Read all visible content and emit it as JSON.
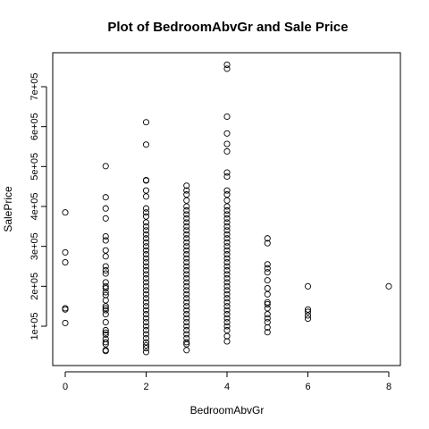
{
  "chart_data": {
    "type": "scatter",
    "title": "Plot of BedroomAbvGr and Sale Price",
    "xlabel": "BedroomAbvGr",
    "ylabel": "SalePrice",
    "xlim": [
      0,
      8
    ],
    "ylim": [
      34900,
      755000
    ],
    "x_ticks": [
      0,
      2,
      4,
      6,
      8
    ],
    "x_tick_labels": [
      "0",
      "2",
      "4",
      "6",
      "8"
    ],
    "y_ticks": [
      100000,
      200000,
      300000,
      400000,
      500000,
      600000,
      700000
    ],
    "y_tick_labels": [
      "1e+05",
      "2e+05",
      "3e+05",
      "4e+05",
      "5e+05",
      "6e+05",
      "7e+05"
    ],
    "grid": false,
    "legend": "none",
    "points": [
      {
        "x": 0,
        "y": 385000
      },
      {
        "x": 0,
        "y": 285000
      },
      {
        "x": 0,
        "y": 260000
      },
      {
        "x": 0,
        "y": 145000
      },
      {
        "x": 0,
        "y": 142000
      },
      {
        "x": 0,
        "y": 108000
      },
      {
        "x": 1,
        "y": 501000
      },
      {
        "x": 1,
        "y": 423000
      },
      {
        "x": 1,
        "y": 395000
      },
      {
        "x": 1,
        "y": 370000
      },
      {
        "x": 1,
        "y": 325000
      },
      {
        "x": 1,
        "y": 315000
      },
      {
        "x": 1,
        "y": 290000
      },
      {
        "x": 1,
        "y": 275000
      },
      {
        "x": 1,
        "y": 250000
      },
      {
        "x": 1,
        "y": 240000
      },
      {
        "x": 1,
        "y": 232000
      },
      {
        "x": 1,
        "y": 210000
      },
      {
        "x": 1,
        "y": 200000
      },
      {
        "x": 1,
        "y": 195000
      },
      {
        "x": 1,
        "y": 185000
      },
      {
        "x": 1,
        "y": 178000
      },
      {
        "x": 1,
        "y": 165000
      },
      {
        "x": 1,
        "y": 150000
      },
      {
        "x": 1,
        "y": 145000
      },
      {
        "x": 1,
        "y": 140000
      },
      {
        "x": 1,
        "y": 130000
      },
      {
        "x": 1,
        "y": 110000
      },
      {
        "x": 1,
        "y": 90000
      },
      {
        "x": 1,
        "y": 84000
      },
      {
        "x": 1,
        "y": 79000
      },
      {
        "x": 1,
        "y": 68000
      },
      {
        "x": 1,
        "y": 60000
      },
      {
        "x": 1,
        "y": 55000
      },
      {
        "x": 1,
        "y": 40000
      },
      {
        "x": 1,
        "y": 37900
      },
      {
        "x": 2,
        "y": 611000
      },
      {
        "x": 2,
        "y": 555000
      },
      {
        "x": 2,
        "y": 466000
      },
      {
        "x": 2,
        "y": 465000
      },
      {
        "x": 2,
        "y": 440000
      },
      {
        "x": 2,
        "y": 425000
      },
      {
        "x": 2,
        "y": 395000
      },
      {
        "x": 2,
        "y": 385000
      },
      {
        "x": 2,
        "y": 375000
      },
      {
        "x": 2,
        "y": 360000
      },
      {
        "x": 2,
        "y": 350000
      },
      {
        "x": 2,
        "y": 340000
      },
      {
        "x": 2,
        "y": 330000
      },
      {
        "x": 2,
        "y": 320000
      },
      {
        "x": 2,
        "y": 310000
      },
      {
        "x": 2,
        "y": 300000
      },
      {
        "x": 2,
        "y": 290000
      },
      {
        "x": 2,
        "y": 280000
      },
      {
        "x": 2,
        "y": 270000
      },
      {
        "x": 2,
        "y": 260000
      },
      {
        "x": 2,
        "y": 250000
      },
      {
        "x": 2,
        "y": 240000
      },
      {
        "x": 2,
        "y": 230000
      },
      {
        "x": 2,
        "y": 220000
      },
      {
        "x": 2,
        "y": 210000
      },
      {
        "x": 2,
        "y": 200000
      },
      {
        "x": 2,
        "y": 190000
      },
      {
        "x": 2,
        "y": 180000
      },
      {
        "x": 2,
        "y": 170000
      },
      {
        "x": 2,
        "y": 160000
      },
      {
        "x": 2,
        "y": 150000
      },
      {
        "x": 2,
        "y": 140000
      },
      {
        "x": 2,
        "y": 130000
      },
      {
        "x": 2,
        "y": 120000
      },
      {
        "x": 2,
        "y": 110000
      },
      {
        "x": 2,
        "y": 100000
      },
      {
        "x": 2,
        "y": 90000
      },
      {
        "x": 2,
        "y": 80000
      },
      {
        "x": 2,
        "y": 70000
      },
      {
        "x": 2,
        "y": 60000
      },
      {
        "x": 2,
        "y": 52000
      },
      {
        "x": 2,
        "y": 45000
      },
      {
        "x": 2,
        "y": 35311
      },
      {
        "x": 3,
        "y": 451950
      },
      {
        "x": 3,
        "y": 440000
      },
      {
        "x": 3,
        "y": 430000
      },
      {
        "x": 3,
        "y": 415000
      },
      {
        "x": 3,
        "y": 400000
      },
      {
        "x": 3,
        "y": 390000
      },
      {
        "x": 3,
        "y": 380000
      },
      {
        "x": 3,
        "y": 370000
      },
      {
        "x": 3,
        "y": 360000
      },
      {
        "x": 3,
        "y": 350000
      },
      {
        "x": 3,
        "y": 340000
      },
      {
        "x": 3,
        "y": 330000
      },
      {
        "x": 3,
        "y": 320000
      },
      {
        "x": 3,
        "y": 310000
      },
      {
        "x": 3,
        "y": 300000
      },
      {
        "x": 3,
        "y": 290000
      },
      {
        "x": 3,
        "y": 280000
      },
      {
        "x": 3,
        "y": 270000
      },
      {
        "x": 3,
        "y": 260000
      },
      {
        "x": 3,
        "y": 250000
      },
      {
        "x": 3,
        "y": 240000
      },
      {
        "x": 3,
        "y": 230000
      },
      {
        "x": 3,
        "y": 220000
      },
      {
        "x": 3,
        "y": 210000
      },
      {
        "x": 3,
        "y": 200000
      },
      {
        "x": 3,
        "y": 190000
      },
      {
        "x": 3,
        "y": 180000
      },
      {
        "x": 3,
        "y": 170000
      },
      {
        "x": 3,
        "y": 160000
      },
      {
        "x": 3,
        "y": 150000
      },
      {
        "x": 3,
        "y": 140000
      },
      {
        "x": 3,
        "y": 130000
      },
      {
        "x": 3,
        "y": 120000
      },
      {
        "x": 3,
        "y": 110000
      },
      {
        "x": 3,
        "y": 100000
      },
      {
        "x": 3,
        "y": 90000
      },
      {
        "x": 3,
        "y": 80000
      },
      {
        "x": 3,
        "y": 70000
      },
      {
        "x": 3,
        "y": 60000
      },
      {
        "x": 3,
        "y": 55000
      },
      {
        "x": 3,
        "y": 40000
      },
      {
        "x": 4,
        "y": 755000
      },
      {
        "x": 4,
        "y": 745000
      },
      {
        "x": 4,
        "y": 625000
      },
      {
        "x": 4,
        "y": 582933
      },
      {
        "x": 4,
        "y": 556581
      },
      {
        "x": 4,
        "y": 538000
      },
      {
        "x": 4,
        "y": 485000
      },
      {
        "x": 4,
        "y": 475000
      },
      {
        "x": 4,
        "y": 440000
      },
      {
        "x": 4,
        "y": 430000
      },
      {
        "x": 4,
        "y": 415000
      },
      {
        "x": 4,
        "y": 400000
      },
      {
        "x": 4,
        "y": 390000
      },
      {
        "x": 4,
        "y": 380000
      },
      {
        "x": 4,
        "y": 370000
      },
      {
        "x": 4,
        "y": 360000
      },
      {
        "x": 4,
        "y": 350000
      },
      {
        "x": 4,
        "y": 340000
      },
      {
        "x": 4,
        "y": 330000
      },
      {
        "x": 4,
        "y": 320000
      },
      {
        "x": 4,
        "y": 310000
      },
      {
        "x": 4,
        "y": 300000
      },
      {
        "x": 4,
        "y": 290000
      },
      {
        "x": 4,
        "y": 280000
      },
      {
        "x": 4,
        "y": 270000
      },
      {
        "x": 4,
        "y": 260000
      },
      {
        "x": 4,
        "y": 250000
      },
      {
        "x": 4,
        "y": 240000
      },
      {
        "x": 4,
        "y": 230000
      },
      {
        "x": 4,
        "y": 220000
      },
      {
        "x": 4,
        "y": 210000
      },
      {
        "x": 4,
        "y": 200000
      },
      {
        "x": 4,
        "y": 190000
      },
      {
        "x": 4,
        "y": 180000
      },
      {
        "x": 4,
        "y": 170000
      },
      {
        "x": 4,
        "y": 160000
      },
      {
        "x": 4,
        "y": 150000
      },
      {
        "x": 4,
        "y": 140000
      },
      {
        "x": 4,
        "y": 130000
      },
      {
        "x": 4,
        "y": 120000
      },
      {
        "x": 4,
        "y": 110000
      },
      {
        "x": 4,
        "y": 100000
      },
      {
        "x": 4,
        "y": 90000
      },
      {
        "x": 4,
        "y": 75000
      },
      {
        "x": 4,
        "y": 62000
      },
      {
        "x": 5,
        "y": 320000
      },
      {
        "x": 5,
        "y": 308000
      },
      {
        "x": 5,
        "y": 255000
      },
      {
        "x": 5,
        "y": 245000
      },
      {
        "x": 5,
        "y": 235000
      },
      {
        "x": 5,
        "y": 215000
      },
      {
        "x": 5,
        "y": 195000
      },
      {
        "x": 5,
        "y": 180000
      },
      {
        "x": 5,
        "y": 160000
      },
      {
        "x": 5,
        "y": 155000
      },
      {
        "x": 5,
        "y": 145000
      },
      {
        "x": 5,
        "y": 130000
      },
      {
        "x": 5,
        "y": 120000
      },
      {
        "x": 5,
        "y": 110000
      },
      {
        "x": 5,
        "y": 97000
      },
      {
        "x": 5,
        "y": 85000
      },
      {
        "x": 6,
        "y": 200000
      },
      {
        "x": 6,
        "y": 142000
      },
      {
        "x": 6,
        "y": 136000
      },
      {
        "x": 6,
        "y": 127000
      },
      {
        "x": 6,
        "y": 119000
      },
      {
        "x": 8,
        "y": 200000
      }
    ]
  }
}
